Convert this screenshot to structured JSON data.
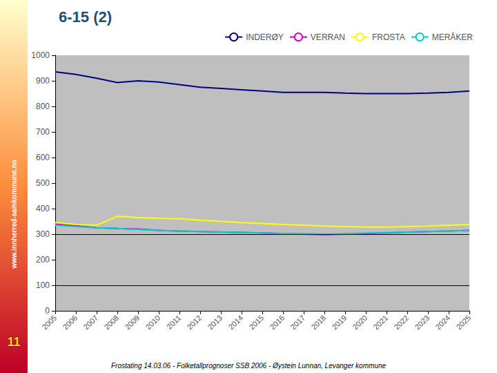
{
  "chart_data": {
    "type": "line",
    "title": "6-15 (2)",
    "annotations": [
      "Frostating 14.03.06 - Folketallprognoser SSB 2006 - Øystein Lunnan, Levanger kommune",
      "www.innherred-samkommune.no",
      "11"
    ],
    "x": [
      2005,
      2006,
      2007,
      2008,
      2009,
      2010,
      2011,
      2012,
      2013,
      2014,
      2015,
      2016,
      2017,
      2018,
      2019,
      2020,
      2021,
      2022,
      2023,
      2024,
      2025
    ],
    "xlim": [
      2005,
      2025
    ],
    "xticks": [
      2005,
      2006,
      2007,
      2008,
      2009,
      2010,
      2011,
      2012,
      2013,
      2014,
      2015,
      2016,
      2017,
      2018,
      2019,
      2020,
      2021,
      2022,
      2023,
      2024,
      2025
    ],
    "series": [
      {
        "name": "INDERØY",
        "color": "#000080",
        "values": [
          935,
          925,
          910,
          893,
          900,
          895,
          885,
          875,
          870,
          865,
          860,
          855,
          855,
          855,
          852,
          850,
          850,
          850,
          852,
          855,
          860
        ]
      },
      {
        "name": "VERRAN",
        "color": "#cc00cc",
        "values": [
          340,
          333,
          325,
          322,
          320,
          315,
          312,
          310,
          308,
          307,
          305,
          302,
          300,
          298,
          300,
          302,
          305,
          308,
          310,
          312,
          315
        ]
      },
      {
        "name": "FROSTA",
        "color": "#ffff00",
        "values": [
          345,
          338,
          335,
          370,
          365,
          362,
          360,
          355,
          350,
          345,
          342,
          338,
          335,
          332,
          330,
          328,
          328,
          330,
          332,
          335,
          338
        ]
      },
      {
        "name": "MERÅKER",
        "color": "#00cccc",
        "values": [
          335,
          330,
          325,
          322,
          318,
          315,
          312,
          310,
          308,
          306,
          305,
          303,
          302,
          300,
          302,
          304,
          306,
          308,
          310,
          312,
          315
        ]
      }
    ],
    "reference_lines": [
      300,
      100
    ],
    "ylim": [
      0,
      1000
    ],
    "yticks": [
      0,
      100,
      200,
      300,
      400,
      500,
      600,
      700,
      800,
      900,
      1000
    ],
    "grid": false,
    "legend": "upper right"
  }
}
